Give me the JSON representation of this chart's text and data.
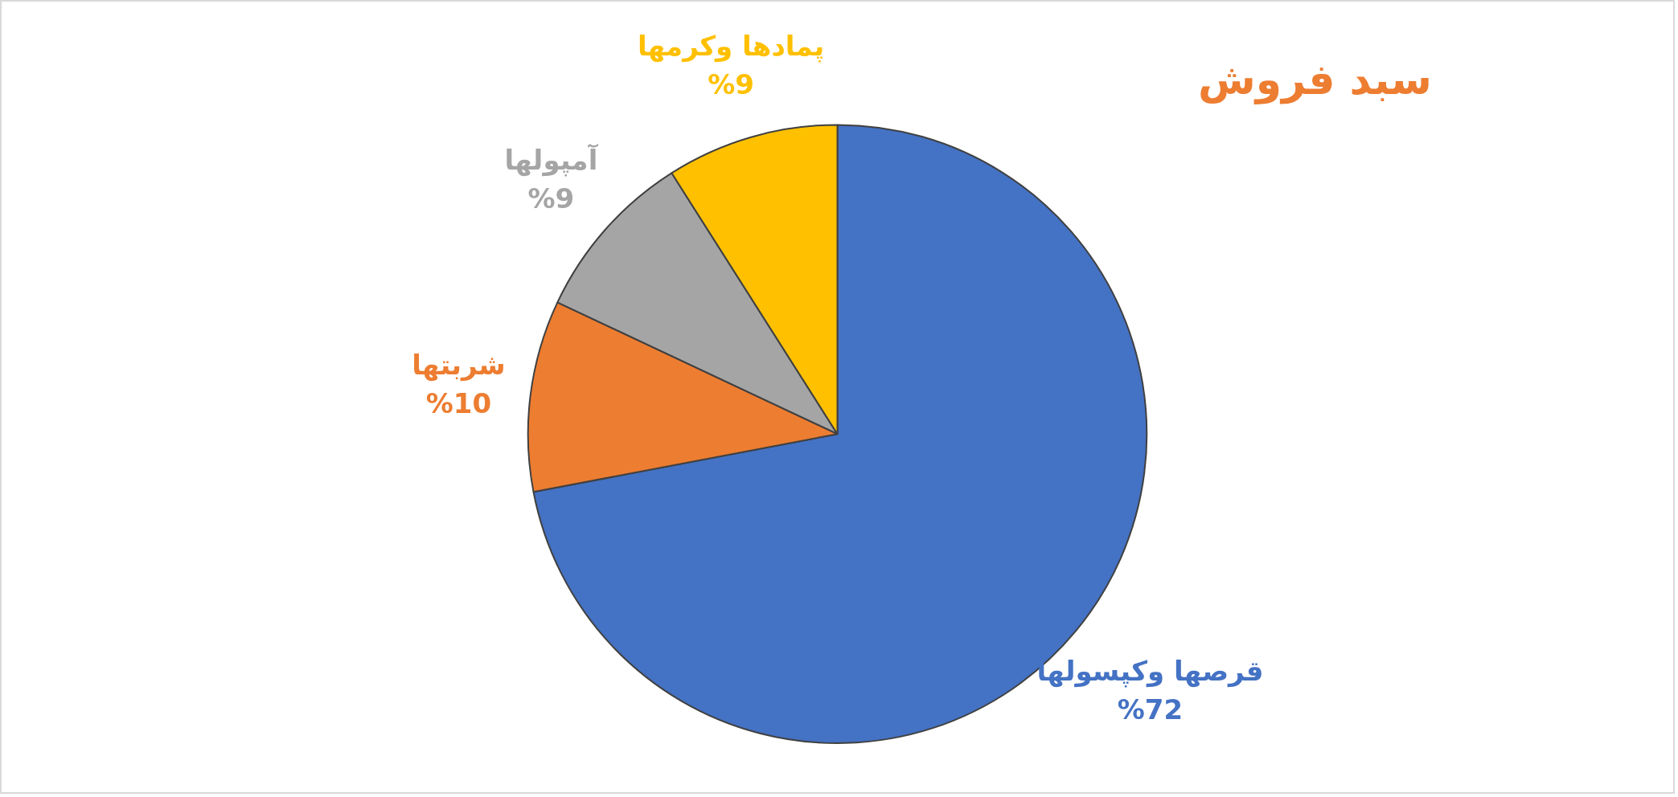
{
  "chart_data": {
    "type": "pie",
    "title": "سبد فروش",
    "categories": [
      "قرصها وکپسولها",
      "شربتها",
      "آمپولها",
      "پمادها وکرمها"
    ],
    "values": [
      72,
      10,
      9,
      9
    ],
    "colors": [
      "#4472c4",
      "#ed7d31",
      "#a5a5a5",
      "#ffc000"
    ],
    "value_labels": [
      "%72",
      "%10",
      "%9",
      "%9"
    ],
    "legend": false
  }
}
